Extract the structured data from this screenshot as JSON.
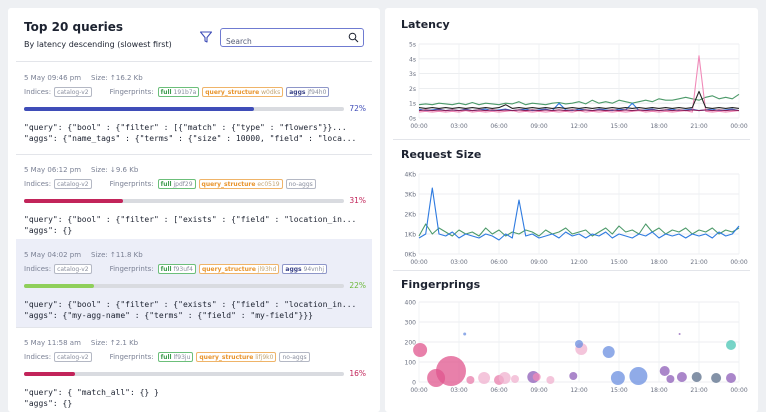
{
  "left": {
    "title": "Top 20 queries",
    "subtitle": "By latency descending (slowest first)",
    "search_placeholder": "Search",
    "indices_label": "Indices:",
    "fingerprints_label": "Fingerprints:",
    "queries": [
      {
        "date": "5 May 09:46 pm",
        "size": "Size: ↑16.2 Kb",
        "index": "catalog-v2",
        "fp_full_k": "full",
        "fp_full_v": "191b7a",
        "fp_qs_k": "query_structure",
        "fp_qs_v": "w0dks",
        "fp_aggs_k": "aggs",
        "fp_aggs_v": "jf94h0",
        "pct": "72%",
        "pct_value": 0.72,
        "color": "#3f4db8",
        "pct_color": "#3f4db8",
        "line1": "\"query\": {\"bool\" : {\"filter\" : [{\"match\" : {\"type\" : \"flowers\"}}...",
        "line2": "\"aggs\": {\"name_tags\" : {\"terms\" : {\"size\" : 10000, \"field\" : \"loca..."
      },
      {
        "date": "5 May 06:12 pm",
        "size": "Size: ↓9.6 Kb",
        "index": "catalog-v2",
        "fp_full_k": "full",
        "fp_full_v": "jpdf29",
        "fp_qs_k": "query_structure",
        "fp_qs_v": "ec0519",
        "fp_aggs_k": "",
        "fp_aggs_v": "no-aggs",
        "pct": "31%",
        "pct_value": 0.31,
        "color": "#c2245a",
        "pct_color": "#c2245a",
        "line1": "\"query\": {\"bool\" : {\"filter\" : [\"exists\" : {\"field\" : \"location_in...",
        "line2": "\"aggs\": {}"
      },
      {
        "date": "5 May 04:02 pm",
        "size": "Size: ↑11.8 Kb",
        "index": "catalog-v2",
        "fp_full_k": "full",
        "fp_full_v": "f93uf4",
        "fp_qs_k": "query_structure",
        "fp_qs_v": "jl93hd",
        "fp_aggs_k": "aggs",
        "fp_aggs_v": "94vnhj",
        "pct": "22%",
        "pct_value": 0.22,
        "color": "#8fcf5a",
        "pct_color": "#6bb83a",
        "line1": "\"query\": {\"bool\" : {\"filter\" : {\"exists\" : {\"field\" : \"location_in...",
        "line2": "\"aggs\": {\"my-agg-name\" : {\"terms\" : {\"field\" : \"my-field\"}}}"
      },
      {
        "date": "5 May 11:58 am",
        "size": "Size: ↑2.1 Kb",
        "index": "catalog-v2",
        "fp_full_k": "full",
        "fp_full_v": "lf93ju",
        "fp_qs_k": "query_structure",
        "fp_qs_v": "lifj9k0",
        "fp_aggs_k": "",
        "fp_aggs_v": "no-aggs",
        "pct": "16%",
        "pct_value": 0.16,
        "color": "#c2245a",
        "pct_color": "#c2245a",
        "line1": "\"query\": { \"match_all\": {} }",
        "line2": "\"aggs\": {}"
      }
    ]
  },
  "chart_data": [
    {
      "type": "line",
      "title": "Latency",
      "y_ticks": [
        "5s",
        "4s",
        "3s",
        "2s",
        "1s",
        "0s"
      ],
      "x_ticks": [
        "00:00",
        "03:00",
        "06:00",
        "09:00",
        "12:00",
        "15:00",
        "18:00",
        "21:00",
        "00:00"
      ],
      "ylim": [
        0,
        5
      ],
      "x": [
        0,
        0.5,
        1,
        1.5,
        2,
        2.5,
        3,
        3.5,
        4,
        4.5,
        5,
        5.5,
        6,
        6.5,
        7,
        7.5,
        8,
        8.5,
        9,
        9.5,
        10,
        10.5,
        11,
        11.5,
        12,
        12.5,
        13,
        13.5,
        14,
        14.5,
        15,
        15.5,
        16,
        16.5,
        17,
        17.5,
        18,
        18.5,
        19,
        19.5,
        20,
        20.5,
        21,
        21.5,
        22,
        22.5,
        23,
        23.5,
        24
      ],
      "series": [
        {
          "color": "#4d9a6a",
          "values": [
            0.9,
            0.95,
            0.9,
            1.0,
            0.95,
            0.9,
            1.0,
            0.9,
            1.05,
            0.9,
            1.0,
            0.95,
            0.9,
            1.0,
            0.95,
            1.1,
            0.9,
            1.0,
            0.95,
            0.9,
            1.0,
            1.05,
            0.95,
            1.0,
            1.1,
            0.95,
            1.2,
            1.0,
            1.1,
            1.0,
            1.2,
            1.1,
            1.0,
            1.1,
            1.2,
            1.1,
            1.3,
            1.2,
            1.2,
            1.3,
            1.4,
            1.3,
            1.2,
            1.4,
            1.5,
            1.3,
            1.4,
            1.3,
            1.6
          ]
        },
        {
          "color": "#2f7be0",
          "values": [
            0.6,
            0.5,
            0.55,
            0.6,
            0.5,
            0.55,
            0.5,
            0.6,
            0.5,
            0.55,
            0.6,
            0.5,
            0.55,
            0.6,
            0.5,
            0.55,
            0.6,
            0.5,
            0.55,
            0.6,
            0.5,
            1.0,
            0.55,
            0.5,
            0.6,
            0.55,
            0.5,
            0.6,
            0.55,
            0.5,
            0.6,
            0.55,
            1.0,
            0.5,
            0.55,
            0.6,
            0.5,
            0.55,
            0.6,
            0.5,
            0.55,
            0.6,
            0.5,
            0.55,
            0.6,
            0.5,
            0.55,
            0.6,
            0.5
          ]
        },
        {
          "color": "#f08ab8",
          "values": [
            0.4,
            0.45,
            0.4,
            0.45,
            0.4,
            0.45,
            0.4,
            0.5,
            0.4,
            0.45,
            0.4,
            0.45,
            0.4,
            0.45,
            0.5,
            0.4,
            0.45,
            0.4,
            0.45,
            0.4,
            0.45,
            0.4,
            0.45,
            0.4,
            0.5,
            0.4,
            0.45,
            0.4,
            0.45,
            0.4,
            0.45,
            0.4,
            0.45,
            0.5,
            0.4,
            0.45,
            0.4,
            0.45,
            0.4,
            0.45,
            0.5,
            0.4,
            4.2,
            0.45,
            0.4,
            0.45,
            0.4,
            0.45,
            0.5
          ]
        },
        {
          "color": "#222222",
          "values": [
            0.7,
            0.65,
            0.7,
            0.65,
            0.7,
            0.65,
            0.7,
            0.65,
            0.7,
            0.65,
            0.7,
            0.65,
            0.7,
            0.9,
            0.65,
            0.7,
            0.65,
            0.7,
            0.65,
            0.7,
            0.65,
            0.7,
            0.65,
            0.7,
            0.65,
            0.7,
            0.65,
            0.7,
            0.65,
            0.7,
            0.65,
            0.7,
            0.65,
            0.7,
            0.65,
            0.7,
            0.65,
            0.7,
            0.65,
            0.7,
            0.65,
            0.7,
            1.8,
            0.7,
            0.65,
            0.7,
            0.65,
            0.7,
            0.65
          ]
        },
        {
          "color": "#8a1f5a",
          "values": [
            0.5,
            0.55,
            0.5,
            0.55,
            0.5,
            0.55,
            0.5,
            0.55,
            0.5,
            0.55,
            0.5,
            0.55,
            0.5,
            0.55,
            0.5,
            0.55,
            0.5,
            0.55,
            0.5,
            0.55,
            0.5,
            0.55,
            0.5,
            0.55,
            0.5,
            0.55,
            0.5,
            0.55,
            0.5,
            0.55,
            0.5,
            0.55,
            0.5,
            0.55,
            0.5,
            0.55,
            0.5,
            0.55,
            0.5,
            0.55,
            0.5,
            0.55,
            0.5,
            0.55,
            0.5,
            0.55,
            0.5,
            0.55,
            0.5
          ]
        }
      ]
    },
    {
      "type": "line",
      "title": "Request Size",
      "y_ticks": [
        "4Kb",
        "3Kb",
        "2Kb",
        "1Kb",
        "0Kb"
      ],
      "x_ticks": [
        "00:00",
        "03:00",
        "06:00",
        "09:00",
        "12:00",
        "15:00",
        "18:00",
        "21:00",
        "00:00"
      ],
      "ylim": [
        0,
        4
      ],
      "x": [
        0,
        0.5,
        1,
        1.5,
        2,
        2.5,
        3,
        3.5,
        4,
        4.5,
        5,
        5.5,
        6,
        6.5,
        7,
        7.5,
        8,
        8.5,
        9,
        9.5,
        10,
        10.5,
        11,
        11.5,
        12,
        12.5,
        13,
        13.5,
        14,
        14.5,
        15,
        15.5,
        16,
        16.5,
        17,
        17.5,
        18,
        18.5,
        19,
        19.5,
        20,
        20.5,
        21,
        21.5,
        22,
        22.5,
        23,
        23.5,
        24
      ],
      "series": [
        {
          "color": "#4d9a6a",
          "values": [
            0.9,
            1.5,
            1.0,
            1.3,
            1.1,
            0.9,
            1.2,
            1.0,
            1.1,
            0.9,
            1.3,
            1.0,
            1.2,
            0.9,
            1.1,
            1.0,
            1.2,
            1.1,
            0.9,
            1.2,
            1.0,
            1.1,
            1.3,
            1.0,
            1.1,
            1.2,
            0.9,
            1.1,
            1.3,
            1.0,
            1.4,
            1.1,
            1.2,
            1.0,
            1.5,
            1.1,
            1.3,
            1.0,
            1.2,
            1.1,
            1.3,
            1.0,
            1.2,
            1.1,
            1.3,
            1.0,
            1.2,
            1.1,
            1.3
          ]
        },
        {
          "color": "#2f7be0",
          "values": [
            0.8,
            1.0,
            3.3,
            1.0,
            0.9,
            1.1,
            0.8,
            1.0,
            0.9,
            0.8,
            1.0,
            0.9,
            0.7,
            1.0,
            0.8,
            2.7,
            0.9,
            1.0,
            0.8,
            0.9,
            1.0,
            0.8,
            1.1,
            0.9,
            1.0,
            0.8,
            1.0,
            0.9,
            1.1,
            0.8,
            1.0,
            0.9,
            0.8,
            1.0,
            0.9,
            1.1,
            0.8,
            1.0,
            0.9,
            1.0,
            0.8,
            1.0,
            0.9,
            1.0,
            0.8,
            1.1,
            0.9,
            1.0,
            1.4
          ]
        }
      ]
    },
    {
      "type": "scatter",
      "title": "Fingerprings",
      "y_ticks": [
        "400",
        "300",
        "200",
        "100",
        "0"
      ],
      "x_ticks": [
        "00:00",
        "03:00",
        "06:00",
        "09:00",
        "12:00",
        "15:00",
        "18:00",
        "21:00",
        "00:00"
      ],
      "ylim": [
        0,
        400
      ],
      "points": [
        {
          "x": 0.1,
          "y": 160,
          "r": 7,
          "color": "#e0568e"
        },
        {
          "x": 1.5,
          "y": 20,
          "r": 9,
          "color": "#e0568e"
        },
        {
          "x": 2.8,
          "y": 55,
          "r": 15,
          "color": "#e0568e"
        },
        {
          "x": 4.5,
          "y": 10,
          "r": 4,
          "color": "#e87dab"
        },
        {
          "x": 5.7,
          "y": 20,
          "r": 6,
          "color": "#f0b1cf"
        },
        {
          "x": 7.0,
          "y": 10,
          "r": 5,
          "color": "#e87dab"
        },
        {
          "x": 7.5,
          "y": 20,
          "r": 6,
          "color": "#f0b1cf"
        },
        {
          "x": 8.4,
          "y": 15,
          "r": 4,
          "color": "#f0b1cf"
        },
        {
          "x": 10.0,
          "y": 25,
          "r": 6,
          "color": "#8e5db8"
        },
        {
          "x": 10.3,
          "y": 25,
          "r": 4,
          "color": "#f08ab8"
        },
        {
          "x": 11.5,
          "y": 10,
          "r": 4,
          "color": "#f0b1cf"
        },
        {
          "x": 13.5,
          "y": 30,
          "r": 4,
          "color": "#8e5db8"
        },
        {
          "x": 14.2,
          "y": 165,
          "r": 6,
          "color": "#f0b1cf"
        },
        {
          "x": 14.0,
          "y": 190,
          "r": 4,
          "color": "#6b8fe0"
        },
        {
          "x": 16.6,
          "y": 150,
          "r": 6,
          "color": "#6b8fe0"
        },
        {
          "x": 17.4,
          "y": 20,
          "r": 7,
          "color": "#6b8fe0"
        },
        {
          "x": 19.2,
          "y": 30,
          "r": 9,
          "color": "#6b8fe0"
        },
        {
          "x": 21.5,
          "y": 55,
          "r": 5,
          "color": "#8e5db8"
        },
        {
          "x": 22.0,
          "y": 15,
          "r": 4,
          "color": "#8e5db8"
        },
        {
          "x": 23.0,
          "y": 25,
          "r": 5,
          "color": "#8e5db8"
        },
        {
          "x": 24.3,
          "y": 25,
          "r": 5,
          "color": "#5a6e8a"
        },
        {
          "x": 26.0,
          "y": 20,
          "r": 5,
          "color": "#5a6e8a"
        },
        {
          "x": 27.3,
          "y": 185,
          "r": 5,
          "color": "#49c6b4"
        },
        {
          "x": 27.3,
          "y": 20,
          "r": 5,
          "color": "#8e5db8"
        },
        {
          "x": 4.0,
          "y": 240,
          "r": 1.5,
          "color": "#6b8fe0"
        },
        {
          "x": 22.8,
          "y": 240,
          "r": 1,
          "color": "#8e5db8"
        }
      ]
    }
  ]
}
